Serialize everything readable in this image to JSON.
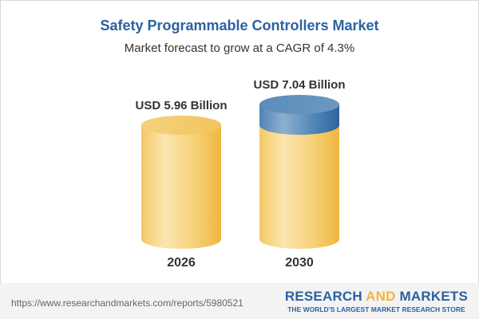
{
  "header": {
    "title": "Safety Programmable Controllers Market",
    "subtitle": "Market forecast to grow at a CAGR of 4.3%"
  },
  "chart_data": {
    "type": "bar",
    "style": "3d-cylinder",
    "categories": [
      "2026",
      "2030"
    ],
    "values": [
      5.96,
      7.04
    ],
    "data_labels": [
      "USD 5.96 Billion",
      "USD 7.04 Billion"
    ],
    "unit": "USD Billion",
    "title": "Safety Programmable Controllers Market",
    "subtitle": "Market forecast to grow at a CAGR of 4.3%",
    "cagr": "4.3%",
    "colors": {
      "base": "#f2c55c",
      "growth": "#3f77ab"
    },
    "grid": false
  },
  "footer": {
    "url": "https://www.researchandmarkets.com/reports/5980521",
    "logo_part1": "RESEARCH ",
    "logo_and": "AND",
    "logo_part2": " MARKETS",
    "tagline": "THE WORLD'S LARGEST MARKET RESEARCH STORE"
  }
}
